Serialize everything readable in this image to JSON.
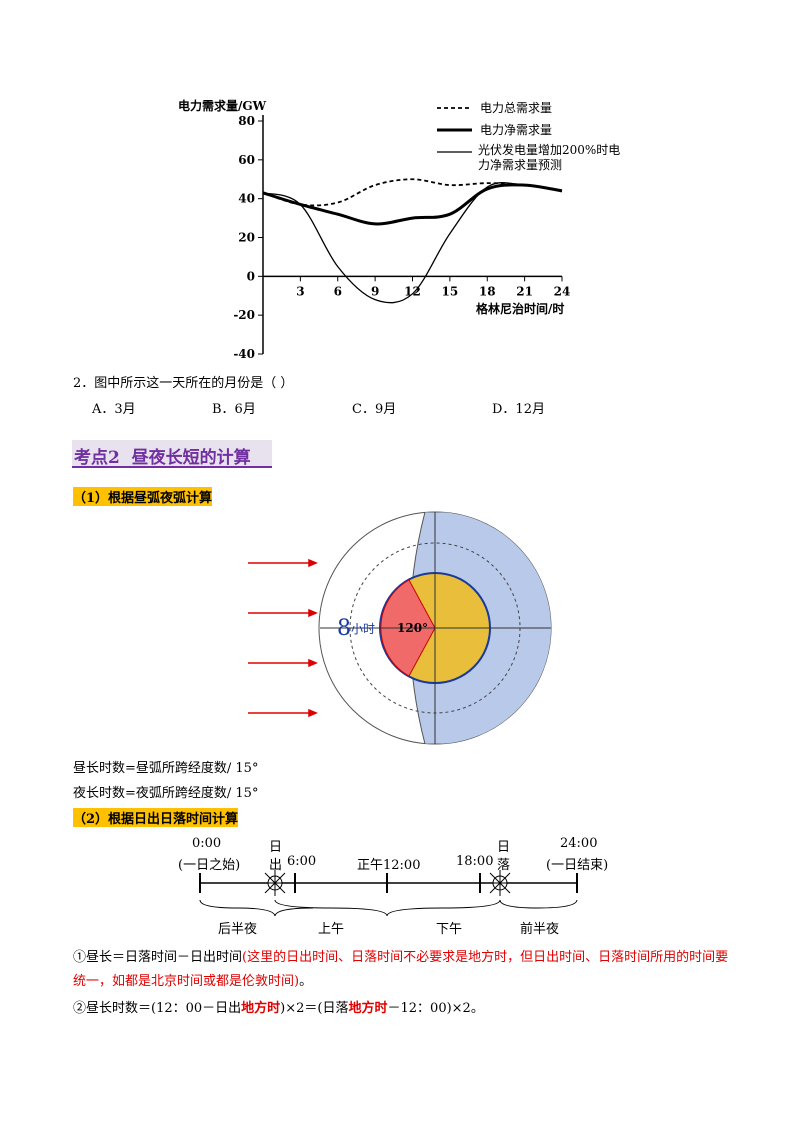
{
  "chart": {
    "type": "line",
    "y_label": "电力需求量/GW",
    "x_label": "格林尼治时间/时",
    "x": [
      0,
      3,
      6,
      9,
      12,
      15,
      18,
      21,
      24
    ],
    "xlim": [
      0,
      24
    ],
    "xticks": [
      3,
      6,
      9,
      12,
      15,
      18,
      21,
      24
    ],
    "ylim": [
      -40,
      80
    ],
    "yticks": [
      80,
      60,
      40,
      20,
      0,
      -20,
      -40
    ],
    "series": [
      {
        "name": "电力总需求量",
        "color": "#000000",
        "style": "dashed",
        "values": [
          43,
          37,
          38,
          47,
          50,
          47,
          48,
          47,
          44
        ]
      },
      {
        "name": "电力净需求量",
        "color": "#000000",
        "style": "thick",
        "values": [
          43,
          37,
          32,
          27,
          30,
          32,
          45,
          47,
          44
        ]
      },
      {
        "name": "光伏发电量增加200%时电力净需求量预测",
        "color": "#000000",
        "style": "thin",
        "values": [
          43,
          37,
          5,
          -12,
          -9,
          22,
          46,
          47,
          44
        ]
      }
    ]
  },
  "question": {
    "stem": "2．图中所示这一天所在的月份是（    ）",
    "options": [
      "A．3月",
      "B．6月",
      "C．9月",
      "D．12月"
    ]
  },
  "section": {
    "title": "考点2  昼夜长短的计算"
  },
  "part1": {
    "title": "（1）根据昼弧夜弧计算",
    "figure": {
      "hours": "8",
      "hours_unit": "小时",
      "angle": "120°"
    },
    "lines": [
      "昼长时数=昼弧所跨经度数/  15°",
      "夜长时数=夜弧所跨经度数/  15°"
    ]
  },
  "part2": {
    "title": "（2）根据日出日落时间计算",
    "timeline": {
      "start_time": "0:00",
      "start_note": "(一日之始)",
      "sunrise_1": "日",
      "sunrise_2": "出",
      "six": "6:00",
      "noon": "正午12:00",
      "eighteen": "18:00",
      "sunset_1": "日",
      "sunset_2": "落",
      "end_time": "24:00",
      "end_note": "(一日结束)",
      "segments": [
        "后半夜",
        "上午",
        "下午",
        "前半夜"
      ]
    },
    "p1": {
      "a": "①昼长＝日落时间－日出时间",
      "b": "(这里的日出时间、日落时间不必要求是地方时，但日出时间、日落时间所用的时间要统一，如都是北京时间或都是伦敦时间)",
      "c": "。"
    },
    "p2": {
      "a": "②昼长时数＝(12：00－日出",
      "b": "地方时",
      "c": ")×2＝(日落",
      "d": "地方时",
      "e": "－12：00)×2。"
    }
  }
}
